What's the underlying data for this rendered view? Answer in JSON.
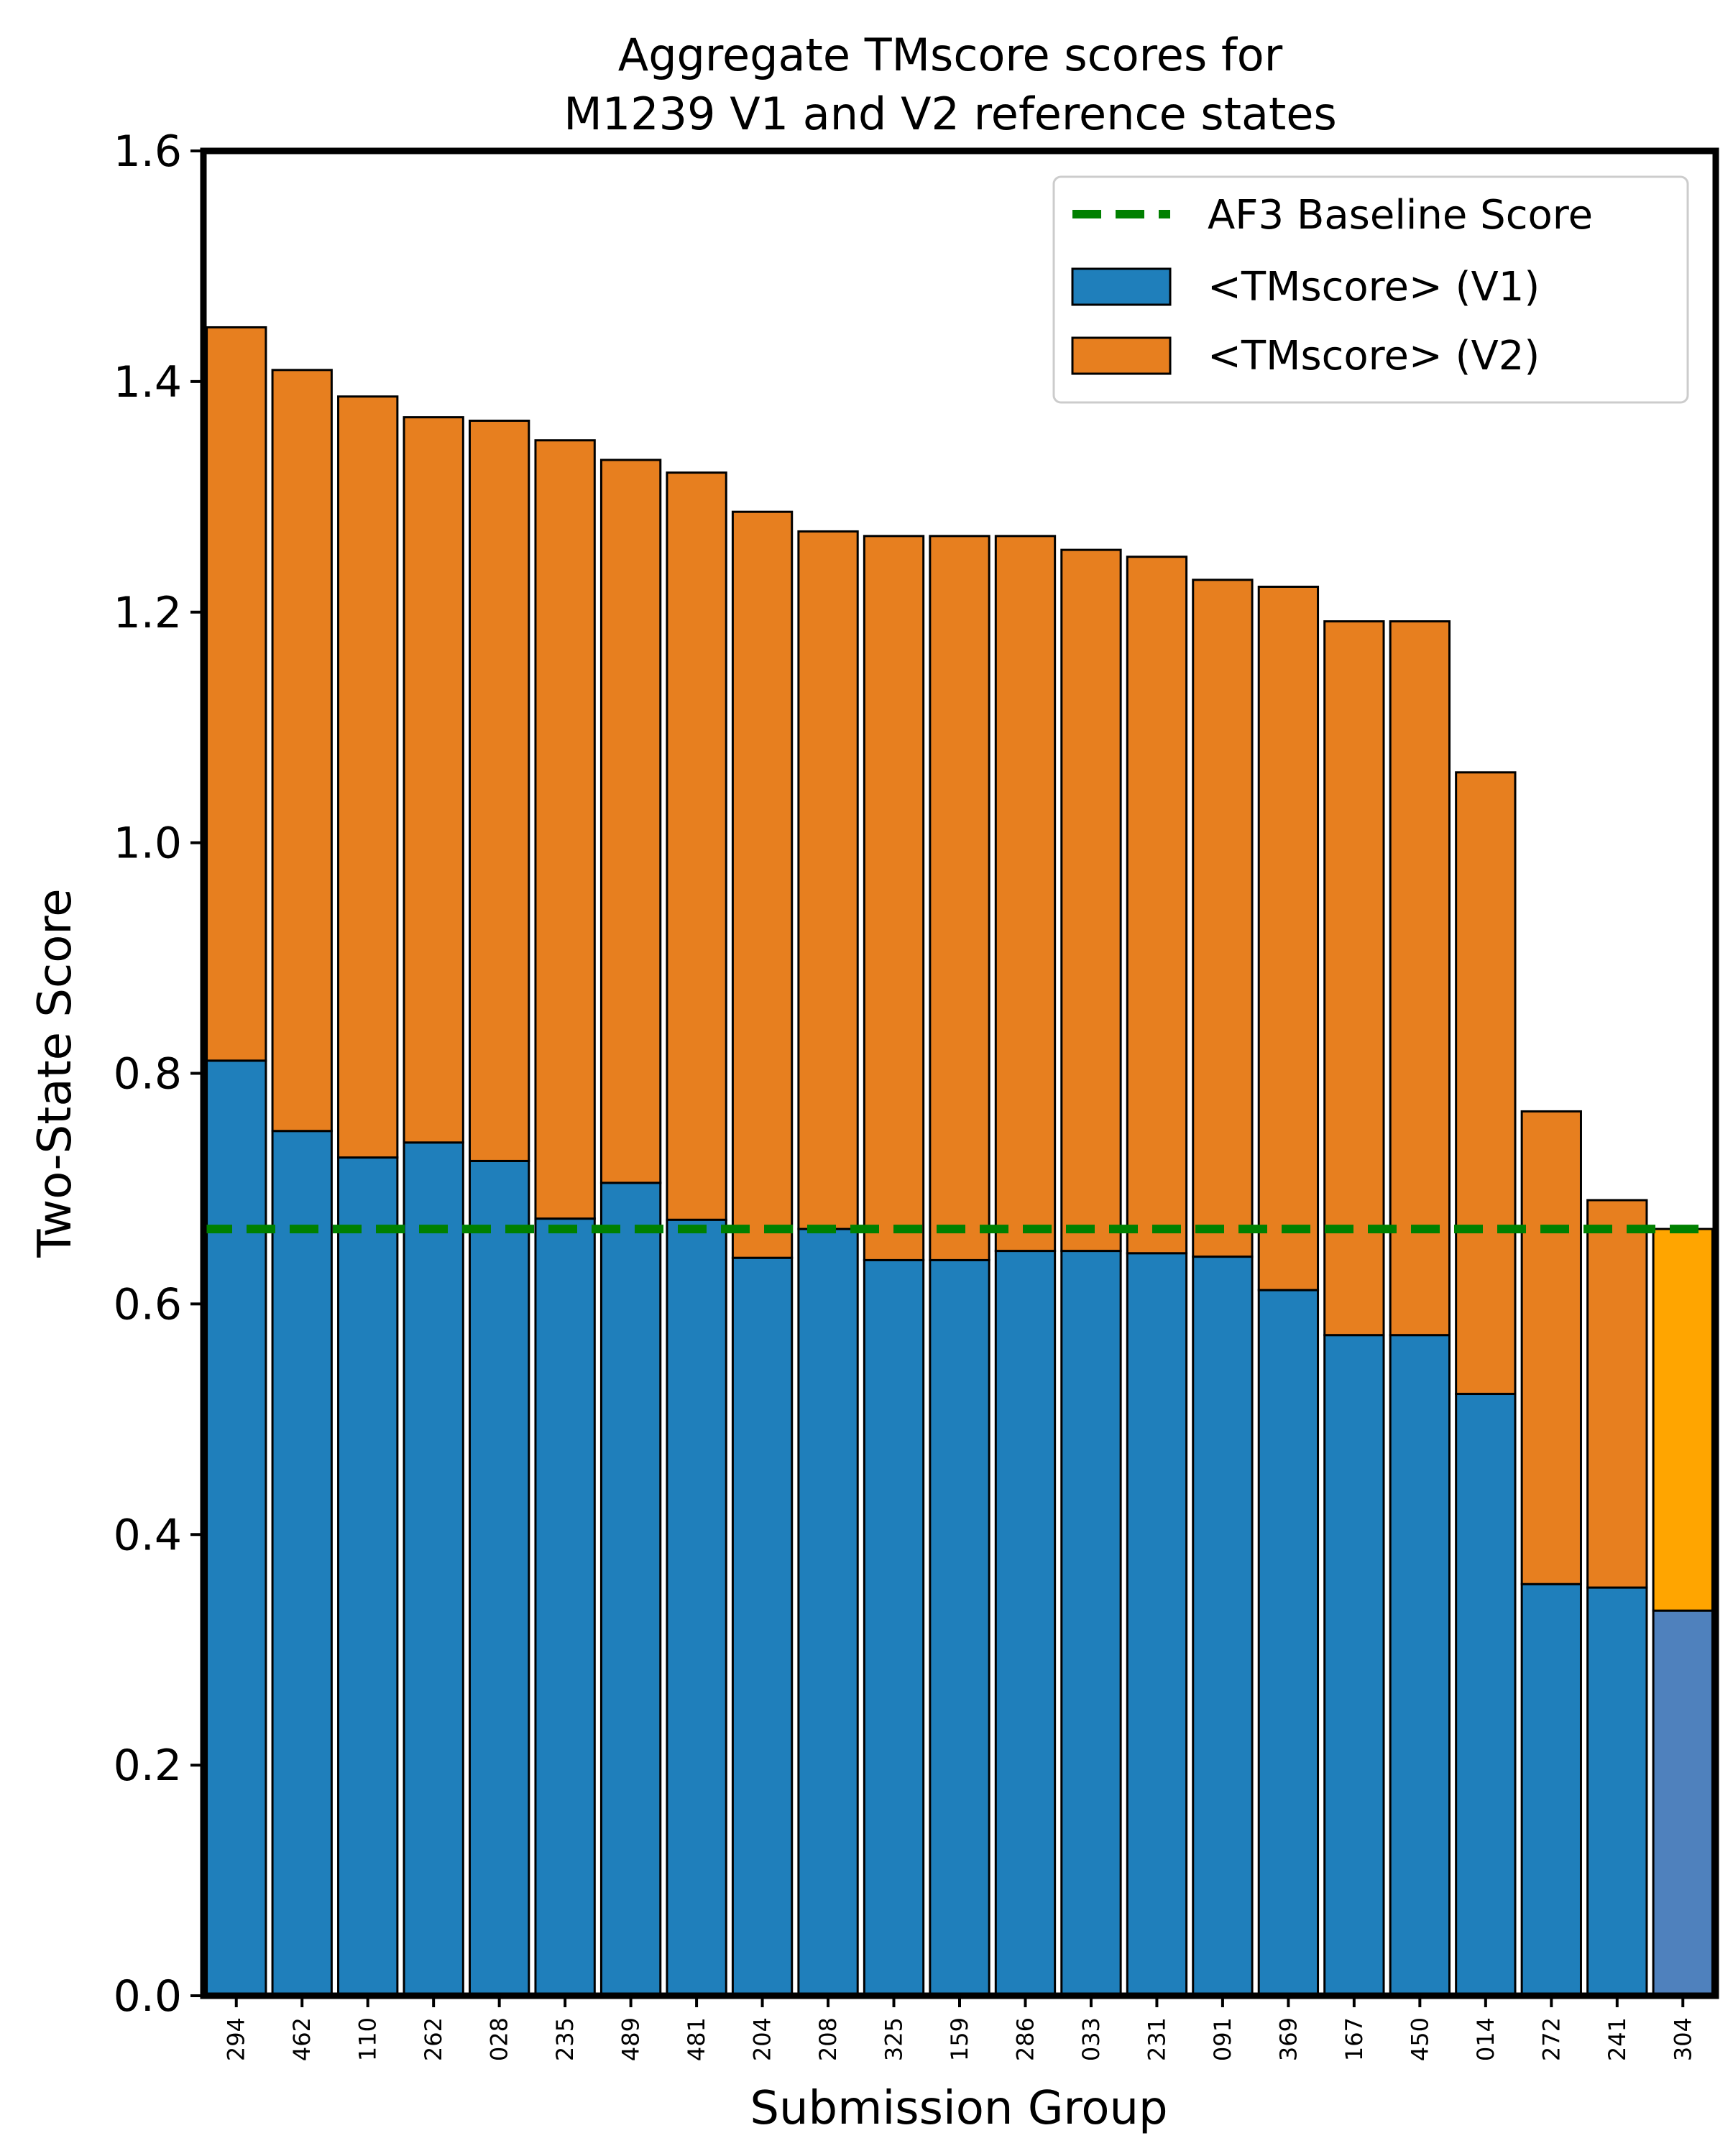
{
  "chart_data": {
    "type": "bar",
    "stacked": true,
    "title_lines": [
      "Aggregate TMscore scores for",
      "M1239 V1 and V2 reference states"
    ],
    "xlabel": "Submission Group",
    "ylabel": "Two-State Score",
    "ylim": [
      0,
      1.6
    ],
    "yticks": [
      "0.0",
      "0.2",
      "0.4",
      "0.6",
      "0.8",
      "1.0",
      "1.2",
      "1.4",
      "1.6"
    ],
    "categories": [
      "294",
      "462",
      "110",
      "262",
      "028",
      "235",
      "489",
      "481",
      "204",
      "208",
      "325",
      "159",
      "286",
      "033",
      "231",
      "091",
      "369",
      "167",
      "450",
      "014",
      "272",
      "241",
      "304"
    ],
    "series": [
      {
        "name": "<TMscore> (V1)",
        "color": "#1f7fbb",
        "values": [
          0.811,
          0.75,
          0.727,
          0.74,
          0.724,
          0.674,
          0.705,
          0.673,
          0.64,
          0.665,
          0.638,
          0.638,
          0.646,
          0.646,
          0.644,
          0.641,
          0.612,
          0.573,
          0.573,
          0.522,
          0.357,
          0.354,
          0.334
        ]
      },
      {
        "name": "<TMscore> (V2)",
        "color": "#e77f1f",
        "values": [
          0.636,
          0.66,
          0.66,
          0.629,
          0.642,
          0.675,
          0.627,
          0.648,
          0.647,
          0.605,
          0.628,
          0.628,
          0.62,
          0.608,
          0.604,
          0.587,
          0.61,
          0.619,
          0.619,
          0.539,
          0.41,
          0.336,
          0.331
        ]
      }
    ],
    "highlight": {
      "category": "304",
      "v1_color": "#4f81bd",
      "v2_color": "#ffa500"
    },
    "baseline": {
      "name": "AF3 Baseline Score",
      "value": 0.665,
      "color": "#008000"
    },
    "legend_position": "top-right",
    "grid": false
  }
}
